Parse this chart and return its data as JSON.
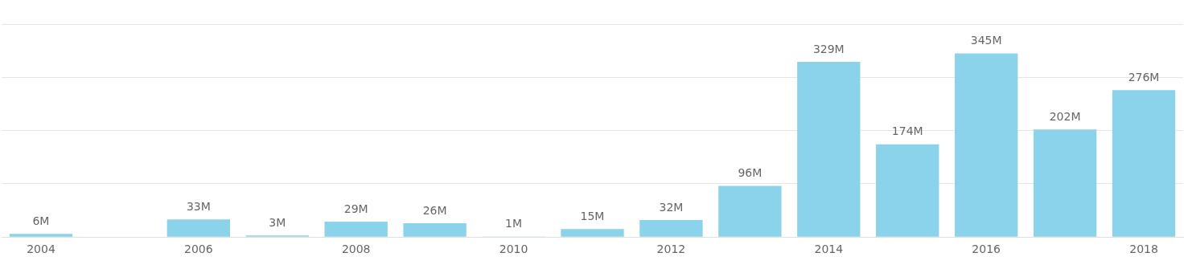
{
  "chart_data": {
    "type": "bar",
    "categories": [
      "2004",
      null,
      "2006",
      null,
      "2008",
      null,
      "2010",
      null,
      "2012",
      null,
      "2014",
      null,
      "2016",
      null,
      "2018"
    ],
    "values": [
      6,
      null,
      33,
      3,
      29,
      26,
      1,
      15,
      32,
      96,
      329,
      174,
      345,
      202,
      276
    ],
    "value_labels": [
      "6M",
      null,
      "33M",
      "3M",
      "29M",
      "26M",
      "1M",
      "15M",
      "32M",
      "96M",
      "329M",
      "174M",
      "345M",
      "202M",
      "276M"
    ],
    "color": "#8ad3ea",
    "ylim": [
      0,
      400
    ],
    "yticks": [
      {
        "value": 0,
        "label": null
      },
      {
        "value": 100,
        "label": null
      },
      {
        "value": 200,
        "label": null
      },
      {
        "value": 300,
        "label": null
      },
      {
        "value": 400,
        "label": null
      }
    ],
    "grid": "y",
    "tick_labels": "x"
  }
}
